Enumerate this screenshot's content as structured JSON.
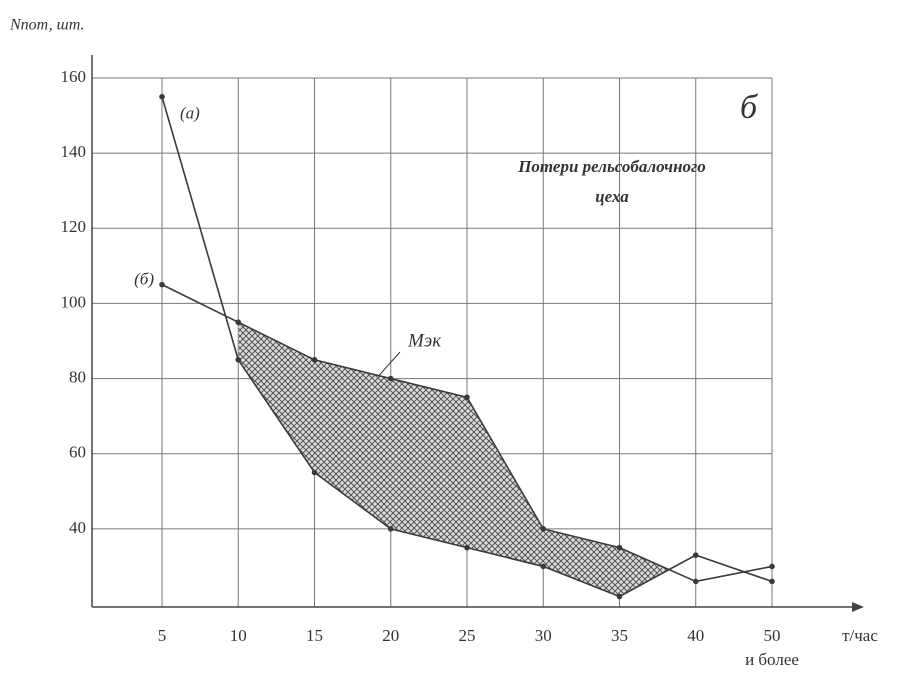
{
  "chart_data": {
    "type": "line",
    "y_label": "Nпот, шт.",
    "x_label": "т/час",
    "panel_label": "б",
    "annotation_lines": [
      "Потери рельсобалочного",
      "цеха"
    ],
    "area_label": "Мэк",
    "categories": [
      "5",
      "10",
      "15",
      "20",
      "25",
      "30",
      "35",
      "40",
      "50 и более"
    ],
    "series": [
      {
        "name": "(а)",
        "color": "#3a3a3a",
        "values": [
          155,
          85,
          55,
          40,
          35,
          30,
          22,
          33,
          26
        ]
      },
      {
        "name": "(б)",
        "color": "#3a3a3a",
        "values": [
          105,
          95,
          85,
          80,
          75,
          40,
          35,
          26,
          30
        ]
      }
    ],
    "ylim": [
      19.2,
      160
    ],
    "yticks": [
      40,
      60,
      80,
      100,
      120,
      140,
      160
    ],
    "grid": true
  }
}
